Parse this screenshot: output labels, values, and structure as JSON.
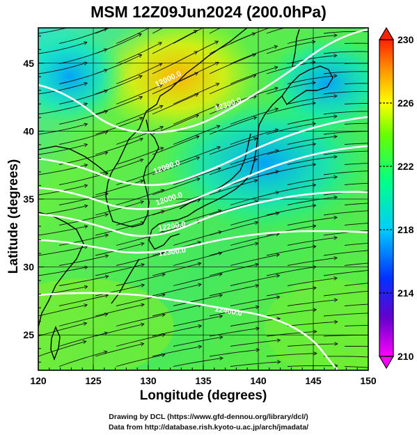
{
  "title": "MSM 12Z09Jun2024 (200.0hPa)",
  "xaxis": {
    "label": "Longitude (degrees)",
    "ticks": [
      "120",
      "125",
      "130",
      "135",
      "140",
      "145",
      "150"
    ],
    "range": [
      120,
      150
    ]
  },
  "yaxis": {
    "label": "Latitude  (degrees)",
    "ticks": [
      "25",
      "30",
      "35",
      "40",
      "45"
    ],
    "range": [
      22.4,
      47.6
    ]
  },
  "colorbar": {
    "ticks": [
      "230",
      "226",
      "222",
      "218",
      "214",
      "210"
    ],
    "range": [
      210,
      230
    ],
    "colors": [
      "#ff00ff",
      "#4400cc",
      "#0044ff",
      "#00bbff",
      "#00ff88",
      "#88ff00",
      "#ffff00",
      "#ff8800",
      "#ff2200"
    ]
  },
  "contours": [
    {
      "label": "12000.0"
    },
    {
      "label": "12300.0"
    },
    {
      "label": "12090.0"
    },
    {
      "label": "12000.0"
    },
    {
      "label": "12200.0"
    },
    {
      "label": "12300.0"
    },
    {
      "label": "12400.0"
    }
  ],
  "credits": {
    "line1": "Drawing by DCL (https://www.gfd-dennou.org/library/dcl/)",
    "line2": "Data from http://database.rish.kyoto-u.ac.jp/arch/jmadata/"
  }
}
